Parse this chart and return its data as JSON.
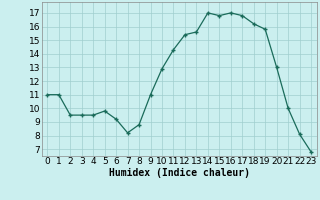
{
  "x": [
    0,
    1,
    2,
    3,
    4,
    5,
    6,
    7,
    8,
    9,
    10,
    11,
    12,
    13,
    14,
    15,
    16,
    17,
    18,
    19,
    20,
    21,
    22,
    23
  ],
  "y": [
    11,
    11,
    9.5,
    9.5,
    9.5,
    9.8,
    9.2,
    8.2,
    8.8,
    11,
    12.9,
    14.3,
    15.4,
    15.6,
    17.0,
    16.8,
    17.0,
    16.8,
    16.2,
    15.8,
    13.0,
    10.0,
    8.1,
    6.8
  ],
  "xlabel": "Humidex (Indice chaleur)",
  "xlim": [
    -0.5,
    23.5
  ],
  "ylim": [
    6.5,
    17.8
  ],
  "yticks": [
    7,
    8,
    9,
    10,
    11,
    12,
    13,
    14,
    15,
    16,
    17
  ],
  "xticks": [
    0,
    1,
    2,
    3,
    4,
    5,
    6,
    7,
    8,
    9,
    10,
    11,
    12,
    13,
    14,
    15,
    16,
    17,
    18,
    19,
    20,
    21,
    22,
    23
  ],
  "line_color": "#1a6b5a",
  "marker_color": "#1a6b5a",
  "bg_color": "#cbefef",
  "grid_color": "#a0cfcf",
  "label_fontsize": 7,
  "tick_fontsize": 6.5
}
